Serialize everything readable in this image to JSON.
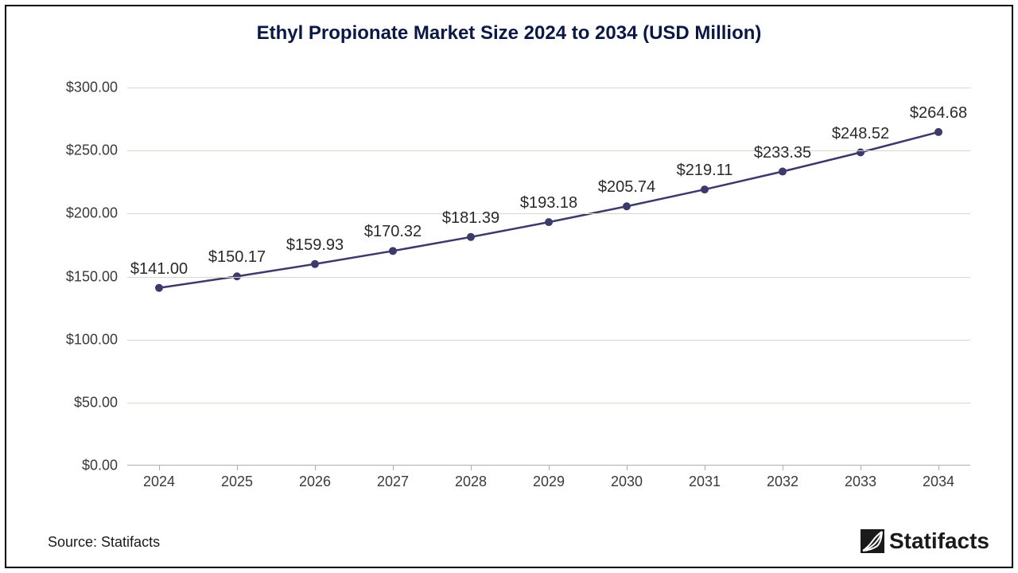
{
  "chart": {
    "type": "line",
    "title": "Ethyl Propionate Market Size 2024 to 2034 (USD Million)",
    "title_color": "#0a1845",
    "title_fontsize": 24,
    "background_color": "#ffffff",
    "border_color": "#000000",
    "grid_color": "#d9d6cc",
    "axis_line_color": "#b0aea5",
    "tick_label_color": "#3a3a3a",
    "tick_label_fontsize": 18,
    "data_label_color": "#2a2a2a",
    "data_label_fontsize": 20,
    "line_color": "#3b3a6b",
    "line_width": 2.5,
    "marker_style": "circle",
    "marker_radius": 5,
    "marker_fill": "#3b3a6b",
    "ylim": [
      0,
      300
    ],
    "ytick_step": 50,
    "yticks": [
      0,
      50,
      100,
      150,
      200,
      250,
      300
    ],
    "ytick_labels": [
      "$0.00",
      "$50.00",
      "$100.00",
      "$150.00",
      "$200.00",
      "$250.00",
      "$300.00"
    ],
    "categories": [
      "2024",
      "2025",
      "2026",
      "2027",
      "2028",
      "2029",
      "2030",
      "2031",
      "2032",
      "2033",
      "2034"
    ],
    "values": [
      141.0,
      150.17,
      159.93,
      170.32,
      181.39,
      193.18,
      205.74,
      219.11,
      233.35,
      248.52,
      264.68
    ],
    "value_labels": [
      "$141.00",
      "$150.17",
      "$159.93",
      "$170.32",
      "$181.39",
      "$193.18",
      "$205.74",
      "$219.11",
      "$233.35",
      "$248.52",
      "$264.68"
    ]
  },
  "source": "Source: Statifacts",
  "brand": {
    "name": "Statifacts",
    "color": "#1a1a1a"
  }
}
